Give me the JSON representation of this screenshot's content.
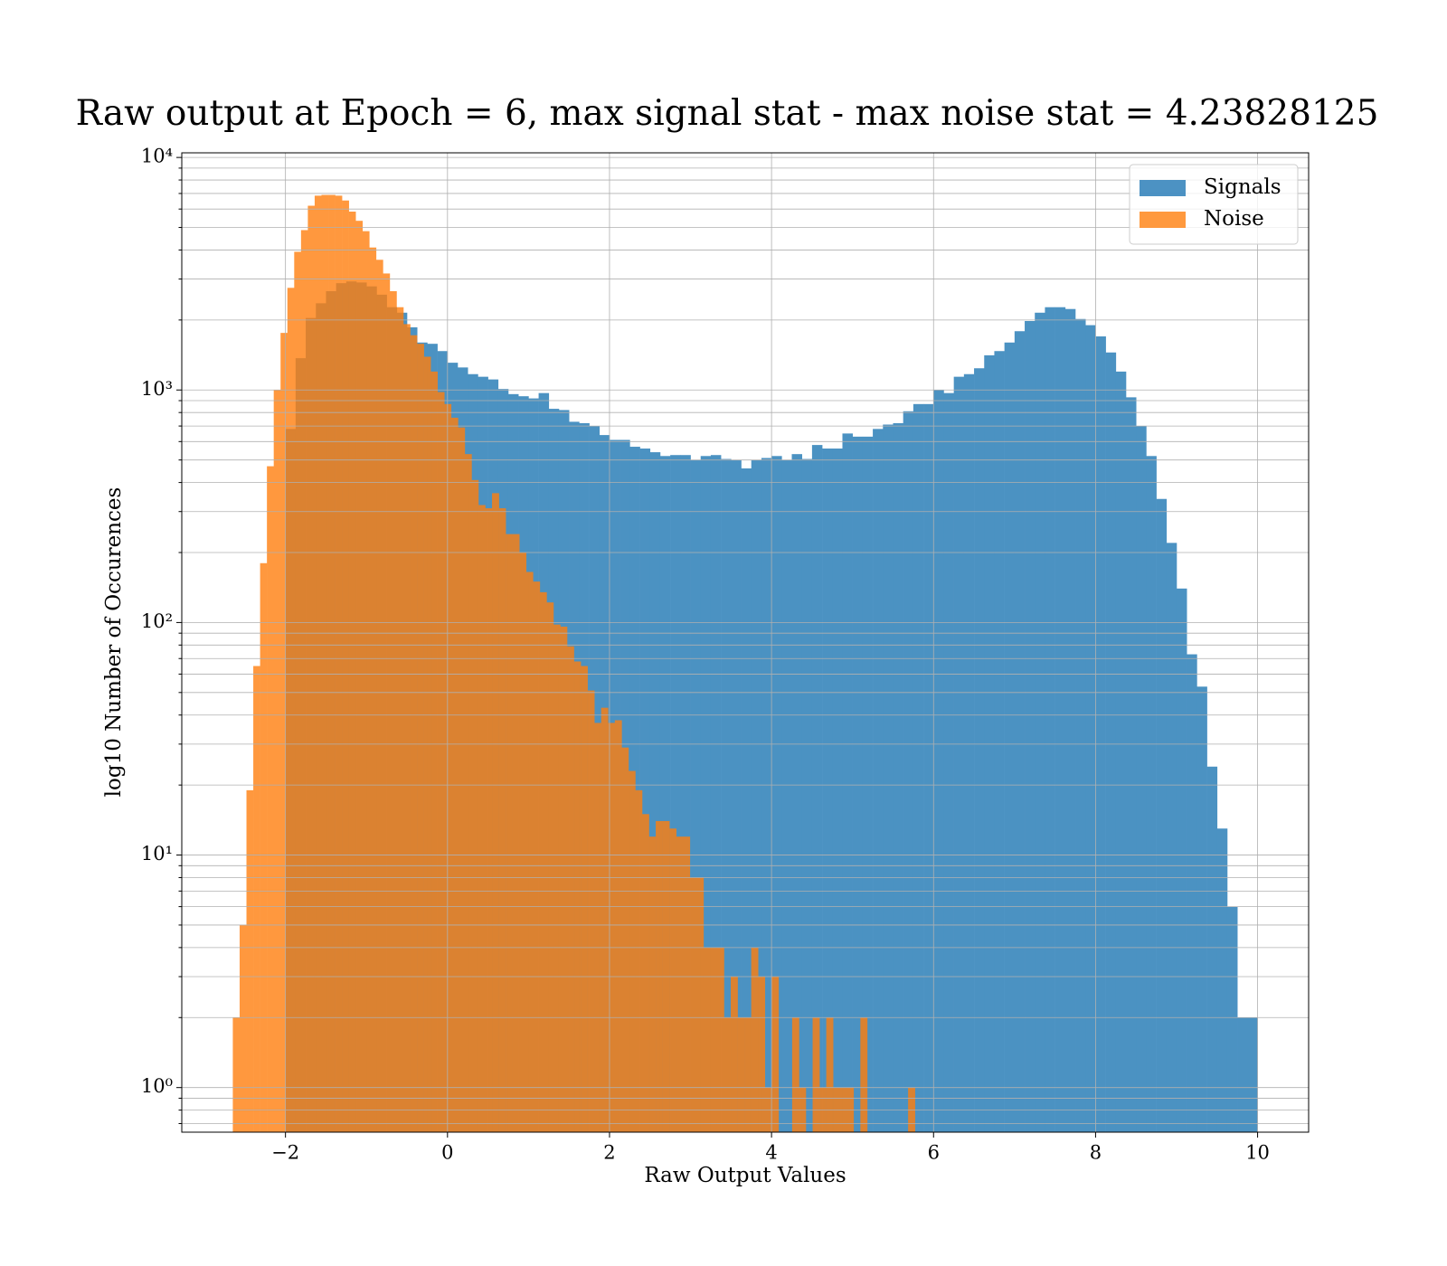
{
  "chart_data": {
    "type": "histogram",
    "title": "Raw output at Epoch = 6, max signal stat - max noise stat = 4.23828125",
    "x_label": "Raw Output Values",
    "y_label": "log10 Number of Occurences",
    "log_y": true,
    "grid": true,
    "legend": "upper right",
    "opacity": 0.8,
    "xlim": [
      -3.28,
      10.63
    ],
    "ylim": [
      0.643,
      10470
    ],
    "xticks": [
      {
        "value": -2,
        "label": "−2"
      },
      0,
      2,
      4,
      6,
      8,
      10
    ],
    "yticks": [
      {
        "value": 1,
        "label": "10⁰"
      },
      {
        "value": 10,
        "label": "10¹"
      },
      {
        "value": 100,
        "label": "10²"
      },
      {
        "value": 1000,
        "label": "10³"
      },
      {
        "value": 10000,
        "label": "10⁴"
      }
    ],
    "yminor": [
      0.7,
      0.8,
      0.9,
      2,
      3,
      4,
      5,
      6,
      7,
      8,
      9,
      20,
      30,
      40,
      50,
      60,
      70,
      80,
      90,
      200,
      300,
      400,
      500,
      600,
      700,
      800,
      900,
      2000,
      3000,
      4000,
      5000,
      6000,
      7000,
      8000,
      9000
    ],
    "series": [
      {
        "name": "Signals",
        "color": "#1f77b4",
        "bins": [
          -2,
          -1.875,
          -1.75,
          -1.625,
          -1.5,
          -1.375,
          -1.25,
          -1.125,
          -1,
          -0.875,
          -0.75,
          -0.625,
          -0.5,
          -0.375,
          -0.25,
          -0.125,
          0,
          0.125,
          0.25,
          0.375,
          0.5,
          0.625,
          0.75,
          0.875,
          1,
          1.125,
          1.25,
          1.375,
          1.5,
          1.625,
          1.75,
          1.875,
          2,
          2.125,
          2.25,
          2.375,
          2.5,
          2.625,
          2.75,
          2.875,
          3,
          3.125,
          3.25,
          3.375,
          3.5,
          3.625,
          3.75,
          3.875,
          4,
          4.125,
          4.25,
          4.375,
          4.5,
          4.625,
          4.75,
          4.875,
          5,
          5.125,
          5.25,
          5.375,
          5.5,
          5.625,
          5.75,
          5.875,
          6,
          6.125,
          6.25,
          6.375,
          6.5,
          6.625,
          6.75,
          6.875,
          7,
          7.125,
          7.25,
          7.375,
          7.5,
          7.625,
          7.75,
          7.875,
          8,
          8.125,
          8.25,
          8.375,
          8.5,
          8.625,
          8.75,
          8.875,
          9,
          9.125,
          9.25,
          9.375,
          9.5,
          9.625,
          9.75,
          9.875,
          10
        ],
        "values": [
          680,
          1370,
          2040,
          2360,
          2660,
          2880,
          2930,
          2900,
          2790,
          2570,
          2270,
          2150,
          1860,
          1600,
          1580,
          1470,
          1310,
          1250,
          1170,
          1140,
          1110,
          1010,
          960,
          940,
          920,
          970,
          830,
          820,
          730,
          720,
          700,
          640,
          610,
          610,
          570,
          560,
          540,
          520,
          525,
          525,
          500,
          520,
          525,
          505,
          500,
          460,
          500,
          510,
          520,
          500,
          530,
          505,
          580,
          560,
          560,
          650,
          630,
          630,
          680,
          710,
          720,
          810,
          870,
          870,
          1000,
          970,
          1140,
          1170,
          1240,
          1410,
          1470,
          1600,
          1790,
          1980,
          2150,
          2270,
          2270,
          2230,
          2020,
          1900,
          1700,
          1450,
          1200,
          930,
          700,
          520,
          340,
          220,
          140,
          73,
          53,
          24,
          13,
          6,
          2,
          2
        ]
      },
      {
        "name": "Noise",
        "color": "#ff7f0e",
        "bins": [
          -2.65,
          -2.5658,
          -2.4816,
          -2.3974,
          -2.3132,
          -2.229,
          -2.1448,
          -2.0606,
          -1.9764,
          -1.8922,
          -1.808,
          -1.7238,
          -1.6396,
          -1.5554,
          -1.4712,
          -1.387,
          -1.3028,
          -1.2186,
          -1.1344,
          -1.0502,
          -0.966,
          -0.8818,
          -0.7976,
          -0.7134,
          -0.6292,
          -0.545,
          -0.4608,
          -0.3766,
          -0.2924,
          -0.2082,
          -0.124,
          -0.0398,
          0.0444,
          0.1286,
          0.2128,
          0.297,
          0.3812,
          0.4654,
          0.5496,
          0.6338,
          0.718,
          0.8022,
          0.8864,
          0.9706,
          1.0548,
          1.139,
          1.2232,
          1.3074,
          1.3916,
          1.4758,
          1.56,
          1.6442,
          1.7284,
          1.8126,
          1.8968,
          1.981,
          2.0652,
          2.1494,
          2.2336,
          2.3178,
          2.402,
          2.4862,
          2.5704,
          2.6546,
          2.7388,
          2.823,
          2.9072,
          2.9914,
          3.0756,
          3.1598,
          3.244,
          3.3282,
          3.4124,
          3.4966,
          3.5808,
          3.665,
          3.7492,
          3.8334,
          3.9176,
          4.0018,
          4.086,
          4.1702,
          4.2544,
          4.3386,
          4.4228,
          4.507,
          4.5912,
          4.6754,
          4.7596,
          4.8438,
          4.928,
          5.0122,
          5.0964,
          5.1806,
          5.2648,
          5.349,
          5.4332,
          5.5174,
          5.6016,
          5.6858,
          5.77
        ],
        "values": [
          2,
          5,
          19,
          65,
          180,
          470,
          1000,
          1760,
          2750,
          3930,
          4870,
          6200,
          6850,
          6900,
          6900,
          6850,
          6530,
          5850,
          5340,
          4820,
          4100,
          3630,
          3170,
          2660,
          2270,
          1920,
          1720,
          1580,
          1390,
          1200,
          980,
          870,
          760,
          690,
          530,
          410,
          320,
          310,
          360,
          310,
          240,
          240,
          200,
          165,
          150,
          135,
          122,
          98,
          96,
          79,
          68,
          65,
          51,
          37,
          43,
          37,
          38,
          29,
          23,
          19,
          15,
          12,
          14,
          14,
          13,
          12,
          12,
          8,
          8,
          4,
          4,
          4,
          2,
          3,
          2,
          2,
          4,
          3,
          1,
          3,
          0,
          0,
          2,
          1,
          0,
          2,
          1,
          2,
          1,
          1,
          1,
          0,
          2,
          0,
          0,
          0,
          0,
          0,
          0,
          1
        ]
      }
    ]
  }
}
